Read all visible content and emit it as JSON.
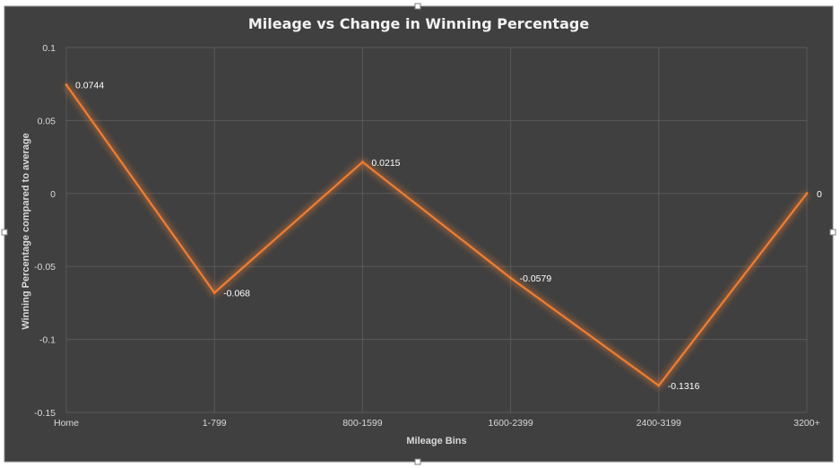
{
  "chart_data": {
    "type": "line",
    "title": "Mileage vs Change in Winning Percentage",
    "xlabel": "Mileage Bins",
    "ylabel": "Winning Percentage compared to average",
    "categories": [
      "Home",
      "1-799",
      "800-1599",
      "1600-2399",
      "2400-3199",
      "3200+"
    ],
    "series": [
      {
        "values": [
          0.0744,
          -0.068,
          0.0215,
          -0.0579,
          -0.1316,
          0
        ],
        "data_labels": [
          "0.0744",
          "-0.068",
          "0.0215",
          "-0.0579",
          "-0.1316",
          "0"
        ],
        "color": "#ed7d31"
      }
    ],
    "ylim": [
      -0.15,
      0.1
    ],
    "yticks": [
      0.1,
      0.05,
      0,
      -0.05,
      -0.1,
      -0.15
    ],
    "ytick_labels": [
      "0.1",
      "0.05",
      "0",
      "-0.05",
      "-0.1",
      "-0.15"
    ],
    "grid": true,
    "legend": "none",
    "background_color": "#404040",
    "gridline_color": "#595959"
  }
}
